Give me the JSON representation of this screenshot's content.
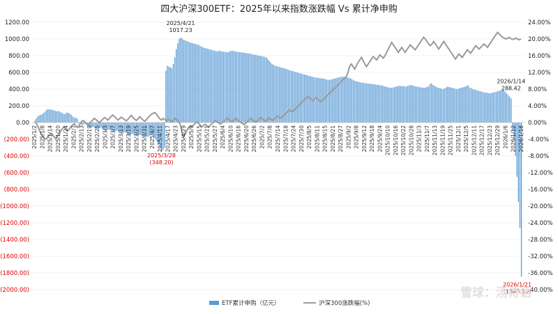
{
  "chart_data": {
    "type": "bar+line",
    "title": "四大沪深300ETF：2025年以来指数涨跌幅 Vs 累计净申购",
    "left_axis": {
      "ticks": [
        1200,
        1000,
        800,
        600,
        400,
        200,
        0,
        -200,
        -400,
        -600,
        -800,
        -1000,
        -1200,
        -1400,
        -1600,
        -1800,
        -2000
      ],
      "tick_labels": [
        "1200.00",
        "1000.00",
        "800.00",
        "600.00",
        "400.00",
        "200.00",
        "0.00",
        "(200.00)",
        "(400.00)",
        "(600.00)",
        "(800.00)",
        "(1000.00)",
        "(1200.00)",
        "(1400.00)",
        "(1600.00)",
        "(1800.00)",
        "(2000.00)"
      ],
      "negative_color": "#e00000",
      "ylim": [
        -2000,
        1200
      ]
    },
    "right_axis": {
      "ticks": [
        24,
        20,
        16,
        12,
        8,
        4,
        0,
        -4,
        -8,
        -12,
        -16,
        -20,
        -24,
        -28,
        -32,
        -36,
        -40
      ],
      "tick_labels": [
        "24.00%",
        "20.00%",
        "16.00%",
        "12.00%",
        "8.00%",
        "4.00%",
        "0.00%",
        "-4.00%",
        "-8.00%",
        "-12.00%",
        "-16.00%",
        "-20.00%",
        "-24.00%",
        "-28.00%",
        "-32.00%",
        "-36.00%",
        "-40.00%"
      ],
      "negative_color": "#e00000",
      "ylim": [
        -40,
        24
      ]
    },
    "x_tick_labels": [
      "2025/1/2",
      "2025/1/8",
      "2025/1/14",
      "2025/1/20",
      "2025/1/24",
      "2025/2/7",
      "2025/2/13",
      "2025/2/19",
      "2025/2/25",
      "2025/3/3",
      "2025/3/7",
      "2025/3/13",
      "2025/3/19",
      "2025/3/25",
      "2025/3/31",
      "2025/4/7",
      "2025/4/11",
      "2025/4/17",
      "2025/4/23",
      "2025/4/29",
      "2025/5/9",
      "2025/5/15",
      "2025/5/21",
      "2025/5/27",
      "2025/6/4",
      "2025/6/10",
      "2025/6/16",
      "2025/6/20",
      "2025/6/26",
      "2025/7/2",
      "2025/7/8",
      "2025/7/14",
      "2025/7/18",
      "2025/7/24",
      "2025/7/30",
      "2025/8/5",
      "2025/8/11",
      "2025/8/15",
      "2025/8/21",
      "2025/8/27",
      "2025/9/2",
      "2025/9/8",
      "2025/9/12",
      "2025/9/18",
      "2025/9/24",
      "2025/10/10",
      "2025/10/16",
      "2025/10/22",
      "2025/10/28",
      "2025/11/3",
      "2025/11/7",
      "2025/11/13",
      "2025/11/19",
      "2025/11/25",
      "2025/12/1",
      "2025/12/5",
      "2025/12/11",
      "2025/12/17",
      "2025/12/23",
      "2025/12/29",
      "2026/1/6",
      "2026/1/12",
      "2026/1/16"
    ],
    "series": [
      {
        "name": "ETF累计申购（亿元）",
        "type": "bar",
        "axis": "left",
        "color": "#5b9bd5",
        "values": [
          20,
          45,
          70,
          85,
          90,
          100,
          110,
          130,
          150,
          160,
          158,
          155,
          150,
          148,
          140,
          135,
          138,
          130,
          120,
          110,
          100,
          110,
          120,
          115,
          105,
          90,
          70,
          55,
          60,
          45,
          -10,
          -20,
          -30,
          -25,
          -15,
          -20,
          -40,
          -50,
          -60,
          -55,
          -50,
          -70,
          -75,
          -80,
          -70,
          -60,
          -80,
          -90,
          -100,
          -95,
          -85,
          -90,
          -95,
          -100,
          -110,
          -105,
          -95,
          -110,
          -120,
          -130,
          -125,
          -115,
          -120,
          -140,
          -150,
          -145,
          -135,
          -140,
          -150,
          -160,
          -155,
          -145,
          -150,
          -165,
          -180,
          -175,
          -165,
          -170,
          -160,
          -150,
          -140,
          -180,
          -200,
          -230,
          -260,
          -300,
          -348,
          -330,
          -300,
          620,
          680,
          670,
          660,
          650,
          700,
          780,
          880,
          950,
          1000,
          1017,
          1005,
          990,
          985,
          975,
          970,
          960,
          955,
          950,
          945,
          940,
          935,
          930,
          920,
          910,
          900,
          895,
          890,
          885,
          880,
          875,
          870,
          865,
          860,
          855,
          850,
          860,
          855,
          850,
          848,
          845,
          842,
          840,
          850,
          855,
          860,
          855,
          850,
          848,
          845,
          842,
          840,
          838,
          835,
          832,
          830,
          828,
          825,
          820,
          815,
          812,
          810,
          805,
          800,
          800,
          795,
          790,
          785,
          780,
          760,
          740,
          720,
          700,
          690,
          680,
          675,
          670,
          665,
          660,
          655,
          650,
          645,
          640,
          630,
          625,
          620,
          615,
          610,
          605,
          600,
          595,
          590,
          585,
          580,
          575,
          570,
          565,
          560,
          555,
          550,
          545,
          540,
          538,
          535,
          532,
          530,
          528,
          525,
          520,
          515,
          510,
          512,
          515,
          520,
          525,
          530,
          535,
          540,
          545,
          548,
          550,
          548,
          545,
          540,
          535,
          530,
          520,
          510,
          500,
          495,
          490,
          485,
          480,
          478,
          475,
          472,
          470,
          468,
          465,
          462,
          460,
          458,
          455,
          452,
          450,
          448,
          445,
          440,
          435,
          430,
          425,
          420,
          418,
          415,
          420,
          425,
          430,
          435,
          440,
          438,
          436,
          434,
          432,
          430,
          440,
          445,
          450,
          445,
          440,
          435,
          430,
          428,
          425,
          420,
          418,
          415,
          420,
          425,
          430,
          460,
          470,
          450,
          440,
          430,
          420,
          415,
          410,
          405,
          400,
          410,
          420,
          430,
          425,
          420,
          415,
          410,
          405,
          400,
          405,
          410,
          415,
          420,
          425,
          430,
          440,
          445,
          420,
          410,
          400,
          395,
          390,
          385,
          380,
          375,
          370,
          365,
          360,
          358,
          355,
          352,
          350,
          355,
          360,
          365,
          370,
          375,
          380,
          385,
          388,
          390,
          370,
          350,
          330,
          310,
          288,
          -100,
          -200,
          -400,
          -650,
          -950,
          -1260,
          -1846
        ]
      },
      {
        "name": "沪深300涨跌幅(%)",
        "type": "line",
        "axis": "right",
        "color": "#999999",
        "values": [
          0,
          -0.5,
          -1.5,
          -2.5,
          -3.2,
          -3.8,
          -4.0,
          -3.6,
          -3.0,
          -2.6,
          -2.9,
          -3.4,
          -3.9,
          -3.3,
          -2.6,
          -2.0,
          -1.4,
          -1.0,
          -1.5,
          -2.0,
          -1.6,
          -1.0,
          -0.6,
          -0.3,
          -0.8,
          -1.2,
          -0.6,
          0.0,
          0.5,
          0.3,
          -0.2,
          -0.6,
          -0.3,
          0.2,
          0.6,
          1.0,
          0.7,
          0.3,
          0.0,
          0.4,
          0.8,
          1.2,
          0.9,
          0.6,
          1.0,
          1.5,
          1.8,
          1.4,
          1.0,
          0.6,
          0.9,
          1.3,
          1.0,
          0.7,
          0.4,
          0.8,
          1.3,
          1.7,
          1.2,
          0.8,
          0.5,
          0.9,
          1.4,
          1.0,
          0.6,
          0.3,
          0.7,
          1.2,
          1.6,
          2.0,
          2.2,
          2.4,
          2.0,
          1.4,
          0.9,
          0.6,
          1.0,
          0.7,
          0.4,
          0.8,
          0.5,
          0.2,
          0.6,
          1.0,
          0.7,
          0.4,
          -0.3,
          -2.0,
          -3.5,
          -2.8,
          -2.0,
          -1.2,
          -0.8,
          -1.0,
          -0.6,
          -0.2,
          0.2,
          -0.2,
          -0.6,
          -1.0,
          -0.7,
          -0.4,
          -0.8,
          -1.1,
          -0.7,
          -0.3,
          0.1,
          0.5,
          0.2,
          -0.1,
          -0.4,
          -0.1,
          0.3,
          0.7,
          1.1,
          0.8,
          0.5,
          0.2,
          0.6,
          1.0,
          0.7,
          0.4,
          0.1,
          -0.2,
          -0.5,
          -0.2,
          0.2,
          0.6,
          1.0,
          0.7,
          0.4,
          0.1,
          0.4,
          0.8,
          1.2,
          0.9,
          0.6,
          0.3,
          0.7,
          1.1,
          0.8,
          0.5,
          0.8,
          1.2,
          1.6,
          1.3,
          1.0,
          1.4,
          1.8,
          2.2,
          2.6,
          3.0,
          2.8,
          2.6,
          3.0,
          3.4,
          3.8,
          4.2,
          4.6,
          5.0,
          5.4,
          5.8,
          6.2,
          6.0,
          5.6,
          5.2,
          5.6,
          6.0,
          5.6,
          5.2,
          5.0,
          5.4,
          5.8,
          6.2,
          6.6,
          7.0,
          7.4,
          7.8,
          8.2,
          8.6,
          9.0,
          9.4,
          9.8,
          10.2,
          10.6,
          11.0,
          12.0,
          13.5,
          14.0,
          13.4,
          12.8,
          13.6,
          14.4,
          15.0,
          15.6,
          14.8,
          14.0,
          13.4,
          14.0,
          14.6,
          15.2,
          15.8,
          15.4,
          15.0,
          15.6,
          16.2,
          15.8,
          15.4,
          16.0,
          16.8,
          17.6,
          18.4,
          19.2,
          18.6,
          18.0,
          17.4,
          16.8,
          17.4,
          18.0,
          17.4,
          16.8,
          17.4,
          18.0,
          18.6,
          18.2,
          17.8,
          17.4,
          18.0,
          18.6,
          19.2,
          19.8,
          20.4,
          20.0,
          19.4,
          18.8,
          18.4,
          18.8,
          19.4,
          18.8,
          18.2,
          17.6,
          18.2,
          18.8,
          19.4,
          18.8,
          18.2,
          17.6,
          17.0,
          16.4,
          15.8,
          15.2,
          15.8,
          16.4,
          16.0,
          15.6,
          16.2,
          16.8,
          17.4,
          17.0,
          16.6,
          17.2,
          17.8,
          18.4,
          18.0,
          17.6,
          18.0,
          18.4,
          18.8,
          18.4,
          18.0,
          18.6,
          19.2,
          19.8,
          20.4,
          21.0,
          21.6,
          21.2,
          20.8,
          20.4,
          20.2,
          20.0,
          20.2,
          20.4,
          20.1,
          19.9,
          20.0,
          20.2,
          20.0,
          19.8,
          20.0
        ]
      }
    ],
    "annotations": [
      {
        "id": "peak",
        "date_label": "2025/4/21",
        "value_label": "1017.23",
        "color": "#222222"
      },
      {
        "id": "trough",
        "date_label": "2025/3/28",
        "value_label": "(348.20)",
        "color": "#e00000"
      },
      {
        "id": "recent",
        "date_label": "2026/1/14",
        "value_label": "288.42",
        "color": "#222222"
      },
      {
        "id": "latest",
        "date_label": "2026/1/21",
        "value_label": "(1846.50)",
        "color": "#e00000"
      }
    ],
    "legend": {
      "placement": "bottom-center",
      "items": [
        {
          "label": "ETF累计申购（亿元）",
          "color": "#5b9bd5",
          "kind": "bar"
        },
        {
          "label": "沪深300涨跌幅(%)",
          "color": "#999999",
          "kind": "line"
        }
      ]
    }
  },
  "watermark": "雪球：汤诗语"
}
